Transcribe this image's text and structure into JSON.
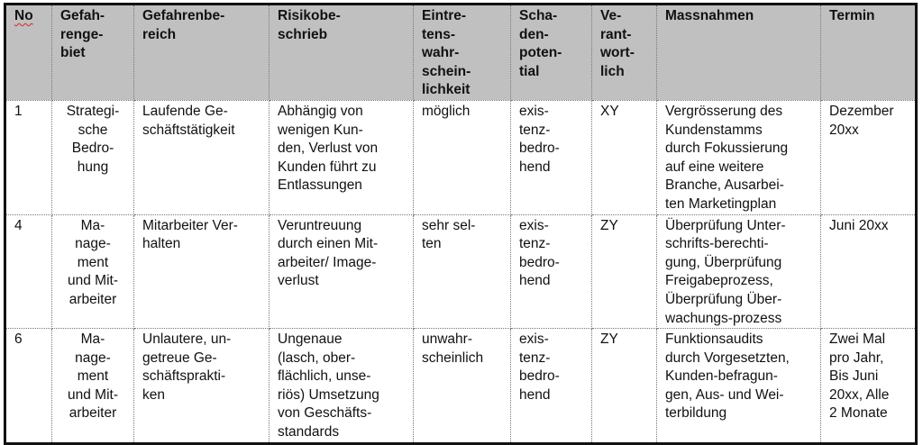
{
  "headers": [
    "No",
    "Gefah-\nrenge-\nbiet",
    "Gefahrenbe-\nreich",
    "Risikobe-\nschrieb",
    "Eintre-\ntens-\nwahr-\nschein-\nlichkeit",
    "Scha-\nden-\npoten-\ntial",
    "Ve-\nrant-\nwort-\nlich",
    "Massnahmen",
    "Termin"
  ],
  "rows": [
    [
      "1",
      "Strategi-\nsche\nBedro-\nhung",
      "Laufende Ge-\nschäftstätigkeit",
      "Abhängig von\nwenigen Kun-\nden, Verlust von\nKunden führt zu\nEntlassungen",
      "möglich",
      "exis-\ntenz-\nbedro-\nhend",
      "XY",
      "Vergrösserung des\nKundenstamms\ndurch Fokussierung\nauf eine weitere\nBranche, Ausarbei-\nten Marketingplan",
      "Dezember\n20xx"
    ],
    [
      "4",
      "Ma-\nnage-\nment\nund Mit-\narbeiter",
      "Mitarbeiter Ver-\nhalten",
      "Veruntreuung\ndurch einen Mit-\narbeiter/ Image-\nverlust",
      "sehr sel-\nten",
      "exis-\ntenz-\nbedro-\nhend",
      "ZY",
      "Überprüfung Unter-\nschrifts-berechti-\ngung, Überprüfung\nFreigabeprozess,\nÜberprüfung Über-\nwachungs-prozess",
      "Juni 20xx"
    ],
    [
      "6",
      "Ma-\nnage-\nment\nund Mit-\narbeiter",
      "Unlautere, un-\ngetreue Ge-\nschäftsprakti-\nken",
      "Ungenaue\n(lasch, ober-\nflächlich, unse-\nriös) Umsetzung\nvon Geschäfts-\nstandards",
      "unwahr-\nscheinlich",
      "exis-\ntenz-\nbedro-\nhend",
      "ZY",
      "Funktionsaudits\ndurch Vorgesetzten,\nKunden-befragun-\ngen, Aus- und Wei-\nterbildung",
      "Zwei Mal\npro Jahr,\nBis Juni\n20xx, Alle\n2 Monate"
    ]
  ]
}
